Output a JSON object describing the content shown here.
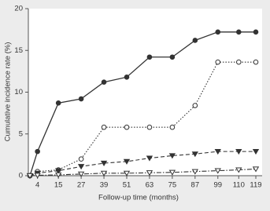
{
  "chart_data": {
    "type": "line",
    "x_label": "Follow-up time (months)",
    "y_label": "Cumulative incidence rate (%)",
    "x": [
      0,
      4,
      15,
      27,
      39,
      51,
      63,
      75,
      87,
      99,
      110,
      119
    ],
    "xlim": [
      0,
      119
    ],
    "xticks": [
      4,
      15,
      27,
      39,
      51,
      63,
      75,
      87,
      99,
      110,
      119
    ],
    "ylim": [
      0,
      20
    ],
    "yticks": [
      0,
      5,
      10,
      15,
      20
    ],
    "grid": false,
    "series": [
      {
        "color": "#333333",
        "marker": "circle",
        "marker_fill": "filled",
        "dash": "solid",
        "values": [
          0,
          2.9,
          8.7,
          9.2,
          11.2,
          11.8,
          14.2,
          14.2,
          16.2,
          17.2,
          17.2,
          17.2
        ]
      },
      {
        "color": "#333333",
        "marker": "circle",
        "marker_fill": "open",
        "dash": "dotted",
        "values": [
          0,
          0.5,
          0.7,
          2.0,
          5.8,
          5.8,
          5.8,
          5.8,
          8.4,
          13.6,
          13.6,
          13.6
        ]
      },
      {
        "color": "#333333",
        "marker": "triangle-down",
        "marker_fill": "filled",
        "dash": "dashed",
        "values": [
          0,
          0.3,
          0.6,
          1.1,
          1.5,
          1.7,
          2.1,
          2.4,
          2.6,
          2.9,
          2.9,
          2.9
        ]
      },
      {
        "color": "#333333",
        "marker": "triangle-down",
        "marker_fill": "open",
        "dash": "dashdot",
        "values": [
          0,
          0.05,
          0.1,
          0.2,
          0.3,
          0.3,
          0.35,
          0.4,
          0.5,
          0.6,
          0.7,
          0.8
        ]
      }
    ]
  }
}
